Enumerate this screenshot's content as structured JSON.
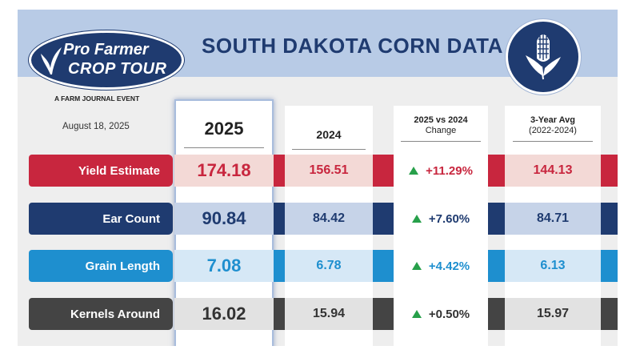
{
  "header": {
    "title": "SOUTH DAKOTA CORN DATA",
    "logo_line1": "Pro Farmer",
    "logo_line2": "CROP TOUR",
    "event": "A FARM JOURNAL EVENT",
    "date": "August 18, 2025",
    "badge_icon": "corn-icon"
  },
  "columns": {
    "c2025": "2025",
    "c2024": "2024",
    "change_l1": "2025 vs 2024",
    "change_l2": "Change",
    "avg_l1": "3-Year Avg",
    "avg_l2": "(2022-2024)"
  },
  "rows": [
    {
      "label": "Yield Estimate",
      "v2025": "174.18",
      "v2024": "156.51",
      "change": "+11.29%",
      "avg": "144.13",
      "color": "#c8263e",
      "tint": "#f3d9d6",
      "text_color": "#c8263e"
    },
    {
      "label": "Ear Count",
      "v2025": "90.84",
      "v2024": "84.42",
      "change": "+7.60%",
      "avg": "84.71",
      "color": "#1f3b70",
      "tint": "#c6d3e8",
      "text_color": "#1f3b70"
    },
    {
      "label": "Grain Length",
      "v2025": "7.08",
      "v2024": "6.78",
      "change": "+4.42%",
      "avg": "6.13",
      "color": "#1e8fcf",
      "tint": "#d6e8f6",
      "text_color": "#1e8fcf"
    },
    {
      "label": "Kernels Around",
      "v2025": "16.02",
      "v2024": "15.94",
      "change": "+0.50%",
      "avg": "15.97",
      "color": "#444444",
      "tint": "#e2e2e2",
      "text_color": "#333333"
    }
  ]
}
